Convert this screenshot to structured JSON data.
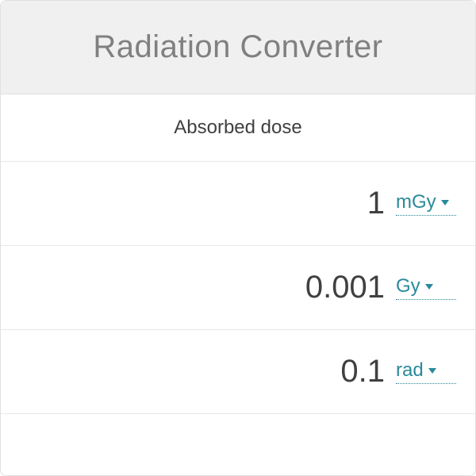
{
  "header": {
    "title": "Radiation Converter"
  },
  "section": {
    "label": "Absorbed dose"
  },
  "rows": [
    {
      "value": "1",
      "unit": "mGy"
    },
    {
      "value": "0.001",
      "unit": "Gy"
    },
    {
      "value": "0.1",
      "unit": "rad"
    }
  ],
  "colors": {
    "header_bg": "#f0f0f0",
    "header_text": "#808080",
    "body_text": "#404040",
    "accent": "#2a8a9a",
    "border": "#e8e8e8"
  }
}
